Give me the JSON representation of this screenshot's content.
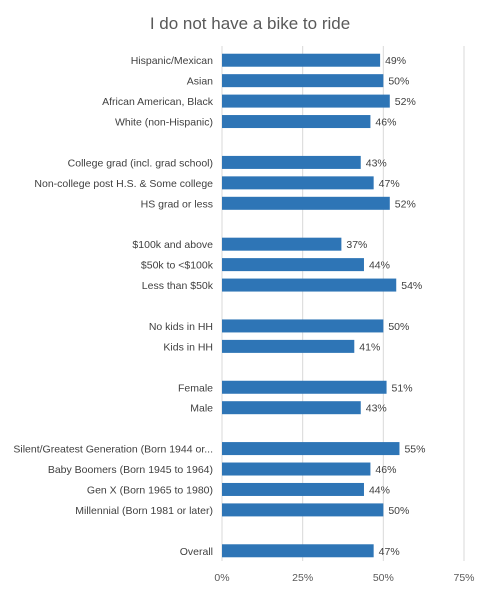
{
  "chart_data": {
    "type": "bar",
    "orientation": "horizontal",
    "title": "I do not have a bike to ride",
    "xlabel": "",
    "ylabel": "",
    "xlim": [
      0,
      0.75
    ],
    "xticks": [
      0,
      0.25,
      0.5,
      0.75
    ],
    "xtick_labels": [
      "0%",
      "25%",
      "50%",
      "75%"
    ],
    "grid": true,
    "bar_color": "#2e75b6",
    "categories": [
      "Hispanic/Mexican",
      "Asian",
      "African American, Black",
      "White (non-Hispanic)",
      "",
      "College grad (incl. grad school)",
      "Non-college post H.S. & Some college",
      "HS grad or less",
      "",
      "$100k and above",
      "$50k to <$100k",
      "Less than $50k",
      "",
      "No kids in HH",
      "Kids in HH",
      "",
      "Female",
      "Male",
      "",
      "Silent/Greatest Generation (Born 1944 or...",
      "Baby Boomers (Born 1945 to 1964)",
      "Gen X (Born 1965 to 1980)",
      "Millennial (Born 1981 or later)",
      "",
      "Overall"
    ],
    "values": [
      0.49,
      0.5,
      0.52,
      0.46,
      null,
      0.43,
      0.47,
      0.52,
      null,
      0.37,
      0.44,
      0.54,
      null,
      0.5,
      0.41,
      null,
      0.51,
      0.43,
      null,
      0.55,
      0.46,
      0.44,
      0.5,
      null,
      0.47
    ],
    "value_labels": [
      "49%",
      "50%",
      "52%",
      "46%",
      "",
      "43%",
      "47%",
      "52%",
      "",
      "37%",
      "44%",
      "54%",
      "",
      "50%",
      "41%",
      "",
      "51%",
      "43%",
      "",
      "55%",
      "46%",
      "44%",
      "50%",
      "",
      "47%"
    ]
  }
}
